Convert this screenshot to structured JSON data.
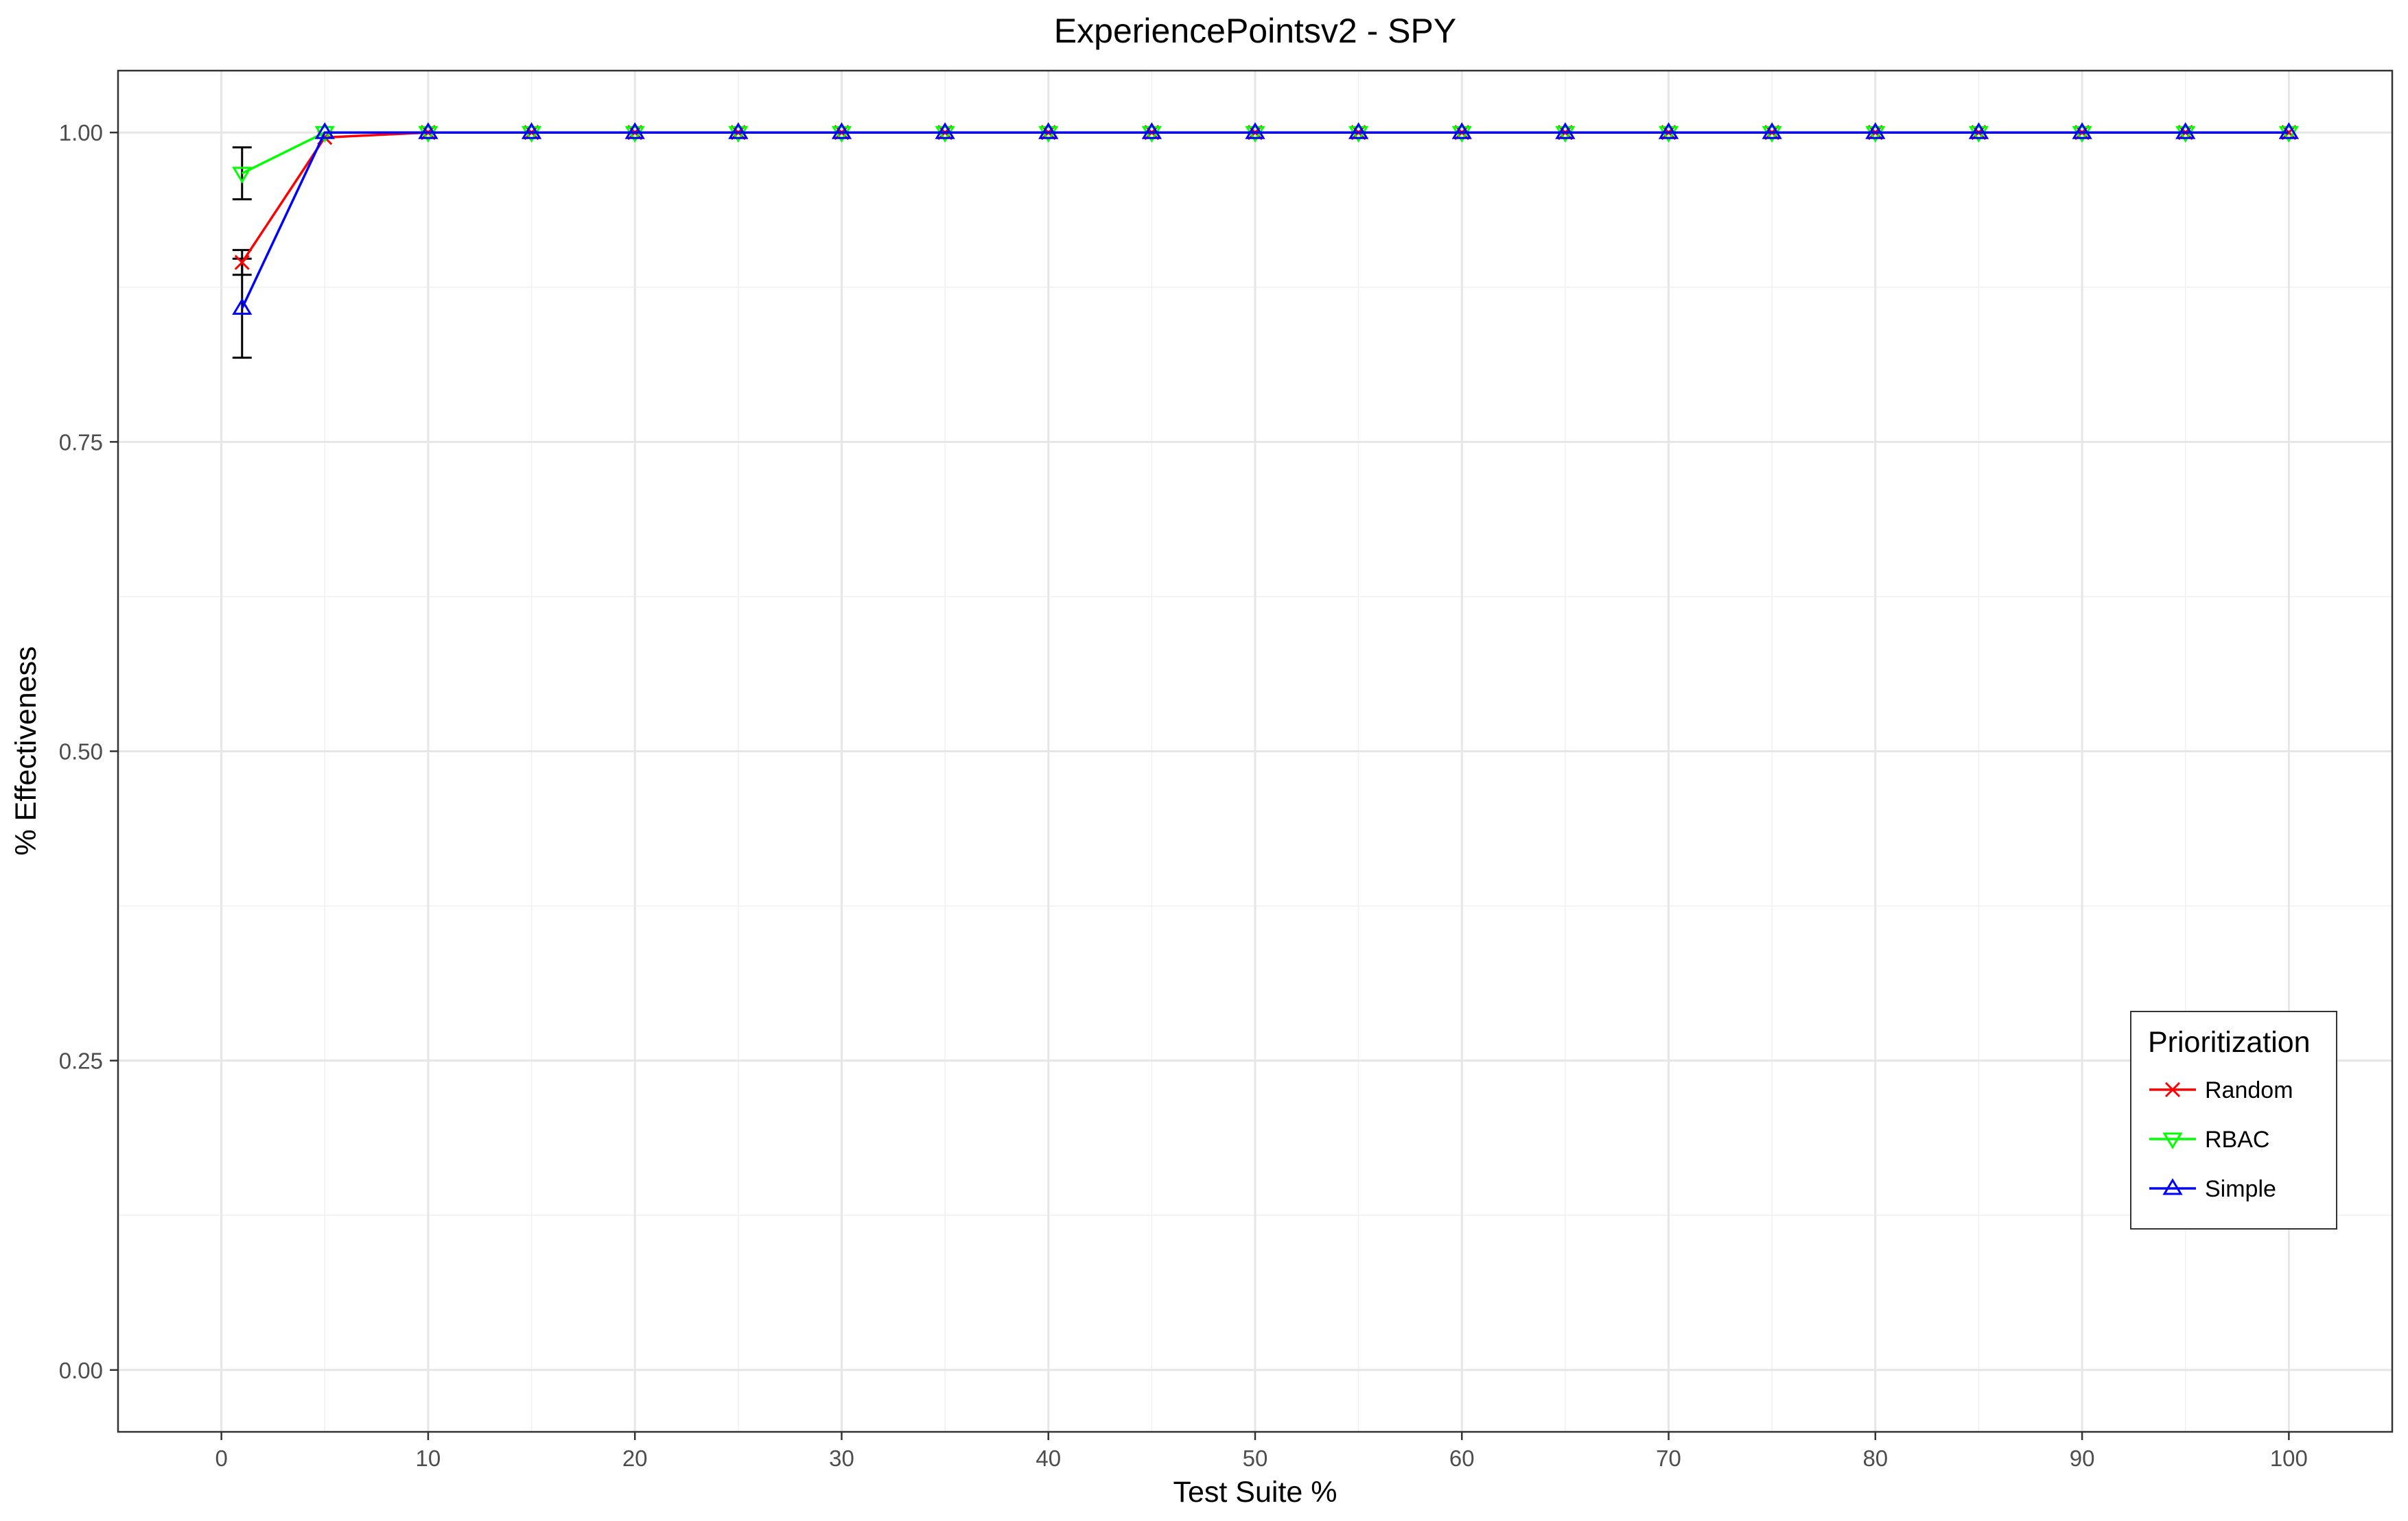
{
  "chart_data": {
    "type": "line",
    "title": "ExperiencePointsv2 - SPY",
    "xlabel": "Test Suite %",
    "ylabel": "% Effectiveness",
    "xlim": [
      -5,
      105
    ],
    "ylim": [
      -0.05,
      1.05
    ],
    "x_ticks": [
      0,
      10,
      20,
      30,
      40,
      50,
      60,
      70,
      80,
      90,
      100
    ],
    "x_tick_labels": [
      "0",
      "10",
      "20",
      "30",
      "40",
      "50",
      "60",
      "70",
      "80",
      "90",
      "100"
    ],
    "y_ticks": [
      0,
      0.25,
      0.5,
      0.75,
      1.0
    ],
    "y_tick_labels": [
      "0.00",
      "0.25",
      "0.50",
      "0.75",
      "1.00"
    ],
    "grid": true,
    "legend": {
      "title": "Prioritization",
      "position": "bottom-right"
    },
    "x": [
      1,
      5,
      10,
      15,
      20,
      25,
      30,
      35,
      40,
      45,
      50,
      55,
      60,
      65,
      70,
      75,
      80,
      85,
      90,
      95,
      100
    ],
    "series": [
      {
        "name": "Random",
        "color": "#ff0000",
        "marker": "x",
        "values": [
          0.895,
          0.996,
          1,
          1,
          1,
          1,
          1,
          1,
          1,
          1,
          1,
          1,
          1,
          1,
          1,
          1,
          1,
          1,
          1,
          1,
          1
        ],
        "error_bars": [
          {
            "x": 1,
            "low": 0.885,
            "high": 0.905
          }
        ]
      },
      {
        "name": "RBAC",
        "color": "#00ff00",
        "marker": "triangle-down",
        "values": [
          0.967,
          1,
          1,
          1,
          1,
          1,
          1,
          1,
          1,
          1,
          1,
          1,
          1,
          1,
          1,
          1,
          1,
          1,
          1,
          1,
          1
        ],
        "error_bars": [
          {
            "x": 1,
            "low": 0.946,
            "high": 0.988
          }
        ]
      },
      {
        "name": "Simple",
        "color": "#0000ff",
        "marker": "triangle-up",
        "values": [
          0.858,
          1,
          1,
          1,
          1,
          1,
          1,
          1,
          1,
          1,
          1,
          1,
          1,
          1,
          1,
          1,
          1,
          1,
          1,
          1,
          1
        ],
        "error_bars": [
          {
            "x": 1,
            "low": 0.818,
            "high": 0.898
          }
        ]
      }
    ]
  }
}
